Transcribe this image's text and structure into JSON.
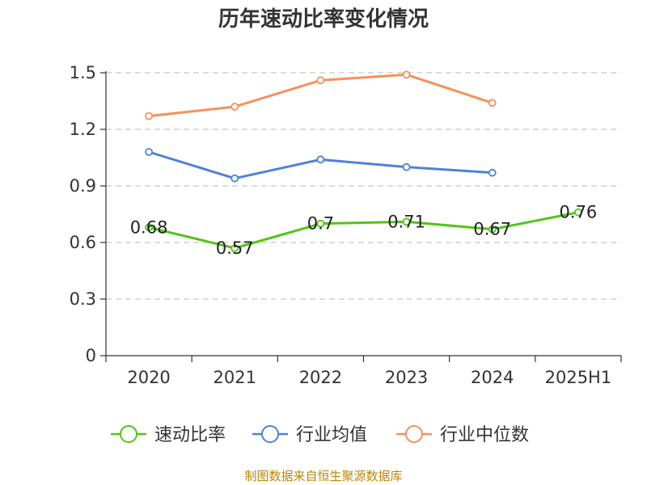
{
  "chart_data": {
    "type": "line",
    "title": "历年速动比率变化情况",
    "categories": [
      "2020",
      "2021",
      "2022",
      "2023",
      "2024",
      "2025H1"
    ],
    "ylim": [
      0,
      1.5
    ],
    "yticks": [
      "0",
      "0.3",
      "0.6",
      "0.9",
      "1.2",
      "1.5"
    ],
    "grid": true,
    "legend_position": "bottom",
    "series": [
      {
        "name": "速动比率",
        "color": "#52c41a",
        "values": [
          0.68,
          0.57,
          0.7,
          0.71,
          0.67,
          0.76
        ],
        "labels": [
          "0.68",
          "0.57",
          "0.7",
          "0.71",
          "0.67",
          "0.76"
        ]
      },
      {
        "name": "行业均值",
        "color": "#4f81d8",
        "values": [
          1.08,
          0.94,
          1.04,
          1.0,
          0.97,
          null
        ]
      },
      {
        "name": "行业中位数",
        "color": "#f5915a",
        "values": [
          1.27,
          1.32,
          1.46,
          1.49,
          1.34,
          null
        ]
      }
    ],
    "source": "制图数据来自恒生聚源数据库"
  }
}
